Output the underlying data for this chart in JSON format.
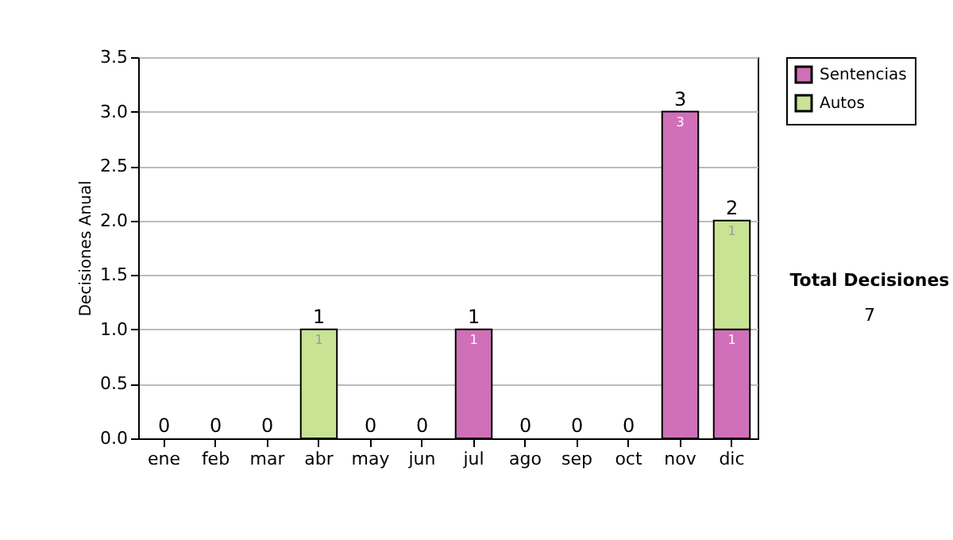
{
  "chart_data": {
    "type": "bar",
    "stacked": true,
    "ylabel": "Decisiones Anual",
    "categories": [
      "ene",
      "feb",
      "mar",
      "abr",
      "may",
      "jun",
      "jul",
      "ago",
      "sep",
      "oct",
      "nov",
      "dic"
    ],
    "series": [
      {
        "name": "Sentencias",
        "color": "#d070b8",
        "values": [
          0,
          0,
          0,
          0,
          0,
          0,
          1,
          0,
          0,
          0,
          3,
          1
        ],
        "value_labels": [
          null,
          null,
          null,
          null,
          null,
          null,
          "1",
          null,
          null,
          null,
          "3",
          "1"
        ]
      },
      {
        "name": "Autos",
        "color": "#c8e394",
        "values": [
          0,
          0,
          0,
          1,
          0,
          0,
          0,
          0,
          0,
          0,
          0,
          1
        ],
        "value_labels": [
          null,
          null,
          null,
          "1",
          null,
          null,
          null,
          null,
          null,
          null,
          null,
          "1"
        ]
      }
    ],
    "totals": [
      "0",
      "0",
      "0",
      "1",
      "0",
      "0",
      "1",
      "0",
      "0",
      "0",
      "3",
      "2"
    ],
    "ylim": [
      0,
      3.5
    ],
    "yticks": [
      {
        "value": 0,
        "label": "0.0"
      },
      {
        "value": 0.5,
        "label": "0.5"
      },
      {
        "value": 1,
        "label": "1.0"
      },
      {
        "value": 1.5,
        "label": "1.5"
      },
      {
        "value": 2,
        "label": "2.0"
      },
      {
        "value": 2.5,
        "label": "2.5"
      },
      {
        "value": 3,
        "label": "3.0"
      },
      {
        "value": 3.5,
        "label": "3.5"
      }
    ],
    "grid": "y",
    "legend": "right",
    "annotations": [
      "Total Decisiones",
      "7"
    ]
  }
}
